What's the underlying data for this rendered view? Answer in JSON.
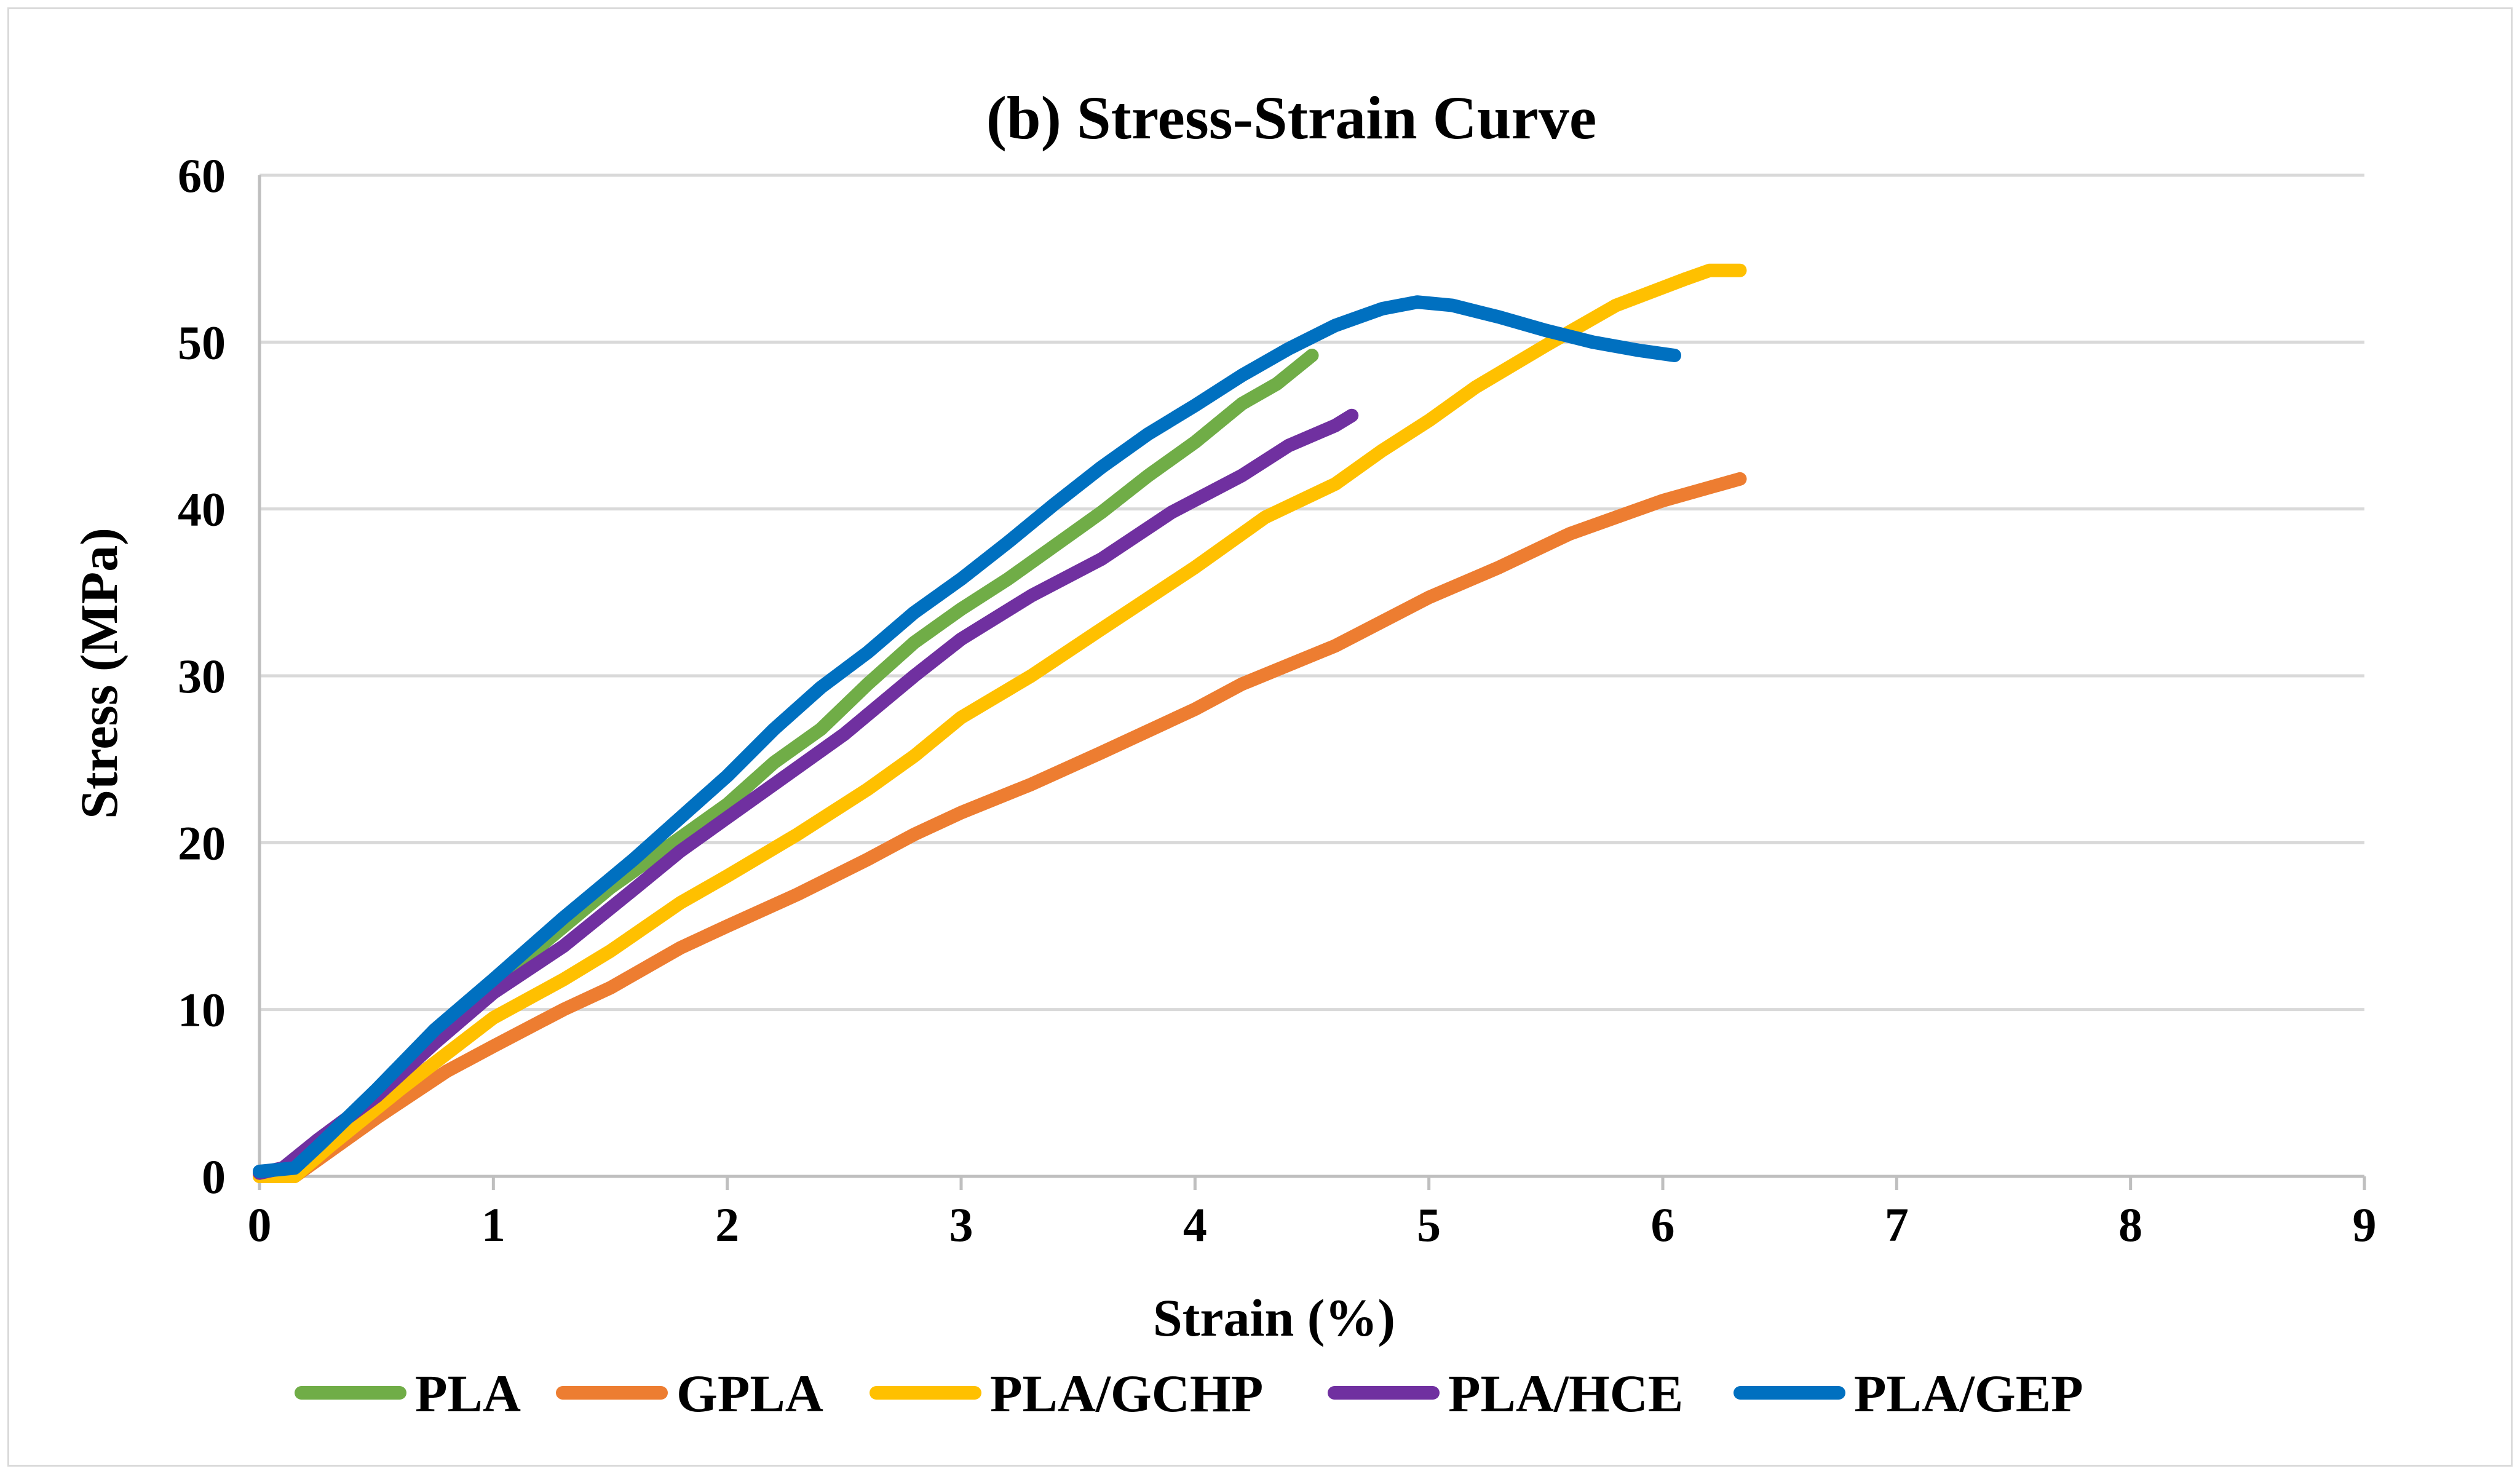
{
  "chart_data": {
    "type": "line",
    "title": "(b) Stress-Strain Curve",
    "xlabel": "Strain (%)",
    "ylabel": "Stress (MPa)",
    "xlim": [
      0,
      9
    ],
    "ylim": [
      0,
      60
    ],
    "xticks": [
      "0",
      "1",
      "2",
      "3",
      "4",
      "5",
      "6",
      "7",
      "8",
      "9"
    ],
    "yticks": [
      "0",
      "10",
      "20",
      "30",
      "40",
      "50",
      "60"
    ],
    "grid": "horizontal",
    "legend_position": "bottom",
    "series": [
      {
        "name": "PLA",
        "color": "#70ad47",
        "points": [
          [
            0,
            0.2
          ],
          [
            0.15,
            0.2
          ],
          [
            0.3,
            1.8
          ],
          [
            0.5,
            4.5
          ],
          [
            0.7,
            7.5
          ],
          [
            1.0,
            11.5
          ],
          [
            1.2,
            13.8
          ],
          [
            1.5,
            17.3
          ],
          [
            1.8,
            20.3
          ],
          [
            2.0,
            22.3
          ],
          [
            2.2,
            24.8
          ],
          [
            2.4,
            26.8
          ],
          [
            2.6,
            29.5
          ],
          [
            2.8,
            32.0
          ],
          [
            3.0,
            34.0
          ],
          [
            3.2,
            35.8
          ],
          [
            3.4,
            37.8
          ],
          [
            3.6,
            39.8
          ],
          [
            3.8,
            42.0
          ],
          [
            4.0,
            44.0
          ],
          [
            4.2,
            46.3
          ],
          [
            4.35,
            47.5
          ],
          [
            4.5,
            49.2
          ]
        ]
      },
      {
        "name": "GPLA",
        "color": "#ed7d31",
        "points": [
          [
            0,
            0
          ],
          [
            0.15,
            0
          ],
          [
            0.3,
            1.5
          ],
          [
            0.5,
            3.5
          ],
          [
            0.8,
            6.3
          ],
          [
            1.0,
            7.8
          ],
          [
            1.3,
            10.0
          ],
          [
            1.5,
            11.3
          ],
          [
            1.8,
            13.7
          ],
          [
            2.0,
            15.0
          ],
          [
            2.3,
            16.9
          ],
          [
            2.6,
            19.0
          ],
          [
            2.8,
            20.5
          ],
          [
            3.0,
            21.8
          ],
          [
            3.3,
            23.5
          ],
          [
            3.6,
            25.4
          ],
          [
            4.0,
            28.0
          ],
          [
            4.2,
            29.5
          ],
          [
            4.6,
            31.8
          ],
          [
            5.0,
            34.7
          ],
          [
            5.3,
            36.5
          ],
          [
            5.6,
            38.5
          ],
          [
            6.0,
            40.5
          ],
          [
            6.33,
            41.8
          ]
        ]
      },
      {
        "name": "PLA/GCHP",
        "color": "#ffc000",
        "points": [
          [
            0,
            0
          ],
          [
            0.15,
            0
          ],
          [
            0.3,
            1.8
          ],
          [
            0.6,
            5.2
          ],
          [
            1.0,
            9.5
          ],
          [
            1.3,
            11.8
          ],
          [
            1.5,
            13.5
          ],
          [
            1.8,
            16.4
          ],
          [
            2.0,
            18.0
          ],
          [
            2.3,
            20.5
          ],
          [
            2.6,
            23.2
          ],
          [
            2.8,
            25.2
          ],
          [
            3.0,
            27.5
          ],
          [
            3.3,
            30.0
          ],
          [
            3.6,
            32.8
          ],
          [
            4.0,
            36.5
          ],
          [
            4.3,
            39.5
          ],
          [
            4.6,
            41.5
          ],
          [
            4.8,
            43.5
          ],
          [
            5.0,
            45.3
          ],
          [
            5.2,
            47.3
          ],
          [
            5.5,
            49.8
          ],
          [
            5.8,
            52.2
          ],
          [
            6.1,
            53.8
          ],
          [
            6.2,
            54.3
          ],
          [
            6.33,
            54.3
          ]
        ]
      },
      {
        "name": "PLA/HCE",
        "color": "#7030a0",
        "points": [
          [
            0,
            0.2
          ],
          [
            0.1,
            0.5
          ],
          [
            0.25,
            2.2
          ],
          [
            0.5,
            4.8
          ],
          [
            0.75,
            8.0
          ],
          [
            1.0,
            11.0
          ],
          [
            1.3,
            13.8
          ],
          [
            1.6,
            17.2
          ],
          [
            1.8,
            19.5
          ],
          [
            2.0,
            21.5
          ],
          [
            2.2,
            23.5
          ],
          [
            2.5,
            26.5
          ],
          [
            2.8,
            30.0
          ],
          [
            3.0,
            32.2
          ],
          [
            3.3,
            34.8
          ],
          [
            3.6,
            37.0
          ],
          [
            3.9,
            39.8
          ],
          [
            4.2,
            42.0
          ],
          [
            4.4,
            43.8
          ],
          [
            4.6,
            45.0
          ],
          [
            4.67,
            45.6
          ]
        ]
      },
      {
        "name": "PLA/GEP",
        "color": "#0070c0",
        "points": [
          [
            0,
            0.3
          ],
          [
            0.15,
            0.5
          ],
          [
            0.25,
            1.8
          ],
          [
            0.5,
            5.2
          ],
          [
            0.75,
            8.8
          ],
          [
            1.0,
            11.8
          ],
          [
            1.3,
            15.5
          ],
          [
            1.6,
            19.0
          ],
          [
            1.8,
            21.5
          ],
          [
            2.0,
            24.0
          ],
          [
            2.2,
            26.8
          ],
          [
            2.4,
            29.3
          ],
          [
            2.6,
            31.4
          ],
          [
            2.8,
            33.8
          ],
          [
            3.0,
            35.8
          ],
          [
            3.2,
            38.0
          ],
          [
            3.4,
            40.3
          ],
          [
            3.6,
            42.5
          ],
          [
            3.8,
            44.5
          ],
          [
            4.0,
            46.2
          ],
          [
            4.2,
            48.0
          ],
          [
            4.4,
            49.6
          ],
          [
            4.6,
            51.0
          ],
          [
            4.8,
            52.0
          ],
          [
            4.95,
            52.4
          ],
          [
            5.1,
            52.2
          ],
          [
            5.3,
            51.5
          ],
          [
            5.5,
            50.7
          ],
          [
            5.7,
            50.0
          ],
          [
            5.9,
            49.5
          ],
          [
            6.05,
            49.2
          ]
        ]
      }
    ]
  }
}
